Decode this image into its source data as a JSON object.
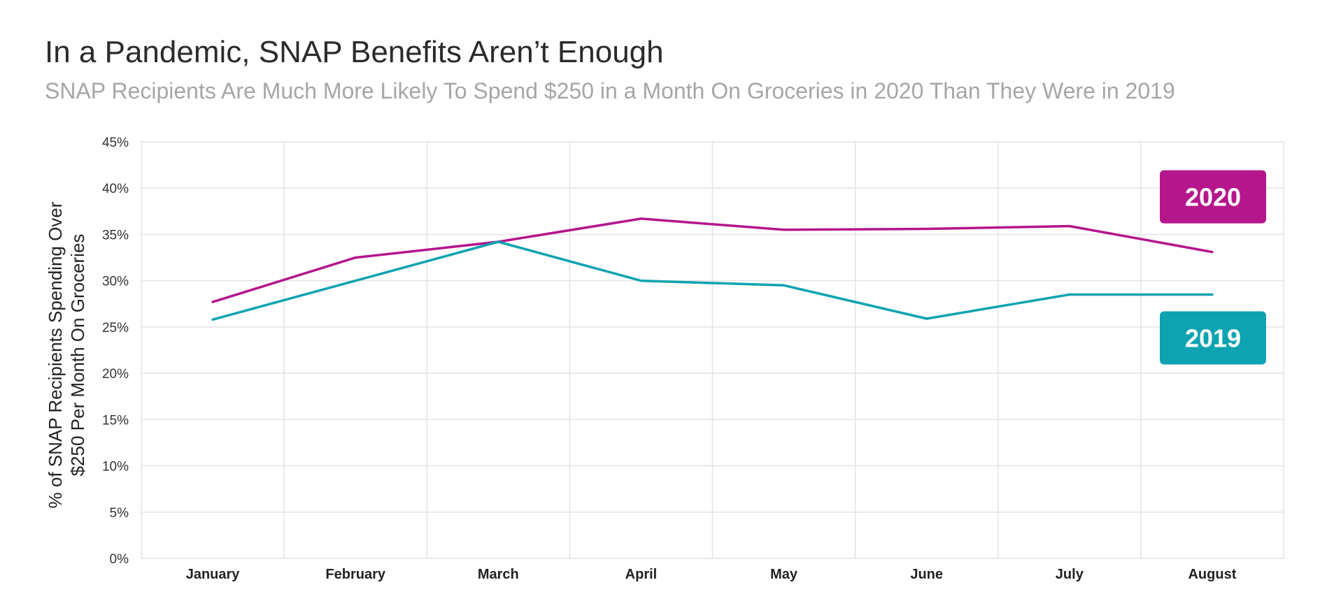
{
  "title": "In a Pandemic, SNAP Benefits Aren’t Enough",
  "subtitle": "SNAP Recipients Are Much More Likely To Spend $250 in a Month On Groceries in 2020 Than They Were in 2019",
  "chart_data": {
    "type": "line",
    "title": "In a Pandemic, SNAP Benefits Aren’t Enough",
    "subtitle": "SNAP Recipients Are Much More Likely To Spend $250 in a Month On Groceries in 2020 Than They Were in 2019",
    "ylabel_line1": "% of SNAP Recipients Spending Over",
    "ylabel_line2": "$250 Per Month On Groceries",
    "categories": [
      "January",
      "February",
      "March",
      "April",
      "May",
      "June",
      "July",
      "August"
    ],
    "ylim": [
      0,
      45
    ],
    "yticks": [
      "0%",
      "5%",
      "10%",
      "15%",
      "20%",
      "25%",
      "30%",
      "35%",
      "40%",
      "45%"
    ],
    "grid": true,
    "legend_placement": "right, inline labels",
    "series": [
      {
        "name": "2020",
        "color": "#B5168C",
        "values": [
          27.7,
          32.5,
          34.2,
          36.7,
          35.5,
          35.6,
          35.9,
          33.1
        ]
      },
      {
        "name": "2019",
        "color": "#0DA3B0",
        "values": [
          25.8,
          30.0,
          34.2,
          30.0,
          29.5,
          25.9,
          28.5,
          28.5
        ]
      }
    ]
  }
}
